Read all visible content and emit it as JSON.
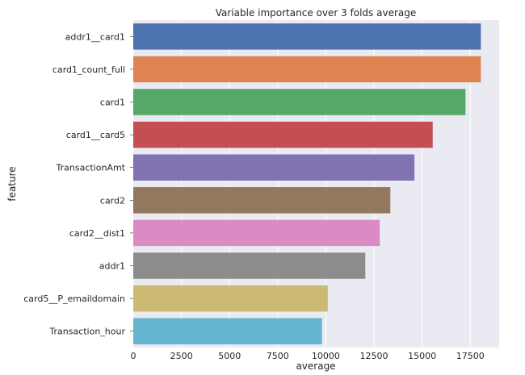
{
  "chart_data": {
    "type": "bar",
    "orientation": "horizontal",
    "title": "Variable importance over 3 folds average",
    "xlabel": "average",
    "ylabel": "feature",
    "categories": [
      "addr1__card1",
      "card1_count_full",
      "card1",
      "card1__card5",
      "TransactionAmt",
      "card2",
      "card2__dist1",
      "addr1",
      "card5__P_emaildomain",
      "Transaction_hour"
    ],
    "values": [
      18050,
      18050,
      17250,
      15550,
      14600,
      13350,
      12800,
      12050,
      10100,
      9800
    ],
    "colors": [
      "#4c72b0",
      "#dd8452",
      "#55a868",
      "#c44e52",
      "#8172b3",
      "#937860",
      "#da8bc3",
      "#8c8c8c",
      "#ccb974",
      "#64b5cd"
    ],
    "xlim": [
      0,
      19000
    ],
    "xticks": [
      0,
      2500,
      5000,
      7500,
      10000,
      12500,
      15000,
      17500
    ],
    "grid": true,
    "background": "#eaeaf2"
  }
}
